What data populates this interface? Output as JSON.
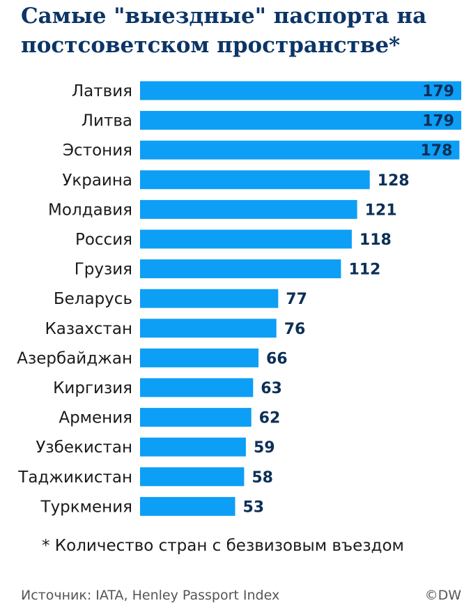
{
  "header": {
    "title": "Самые \"выездные\" паспорта на постсоветском пространстве*"
  },
  "footer": {
    "footnote": "* Количество стран с безвизовым въездом",
    "source": "Источник: IATA, Henley Passport Index",
    "credit": "©DW"
  },
  "colors": {
    "bar": "#0d9ef5",
    "value_text": "#0c2f57",
    "title": "#0c3566"
  },
  "chart_data": {
    "type": "bar",
    "orientation": "horizontal",
    "title": "Самые \"выездные\" паспорта на постсоветском пространстве*",
    "categories": [
      "Латвия",
      "Литва",
      "Эстония",
      "Украина",
      "Молдавия",
      "Россия",
      "Грузия",
      "Беларусь",
      "Казахстан",
      "Азербайджан",
      "Киргизия",
      "Армения",
      "Узбекистан",
      "Таджикистан",
      "Туркмения"
    ],
    "values": [
      179,
      179,
      178,
      128,
      121,
      118,
      112,
      77,
      76,
      66,
      63,
      62,
      59,
      58,
      53
    ],
    "xlim": [
      0,
      179
    ],
    "grid": false,
    "legend": "none",
    "data_labels": true
  }
}
